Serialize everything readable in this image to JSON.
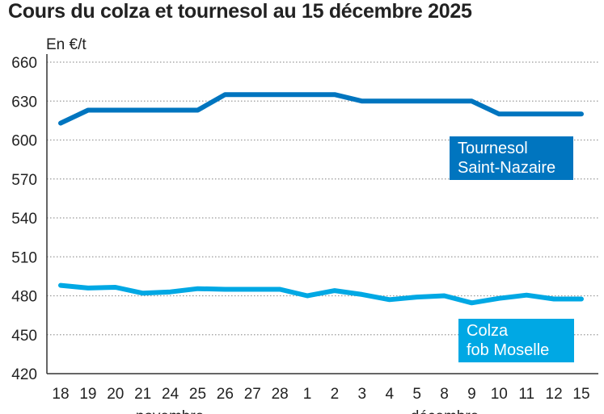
{
  "title": "Cours du colza et tournesol au 15 décembre 2025",
  "chart_data": {
    "type": "line",
    "title": "Cours du colza et tournesol au 15 décembre 2025",
    "ylabel": "En €/t",
    "ylim": [
      420,
      660
    ],
    "yticks": [
      420,
      450,
      480,
      510,
      540,
      570,
      600,
      630,
      660
    ],
    "grid": true,
    "categories": [
      "18",
      "19",
      "20",
      "21",
      "24",
      "25",
      "26",
      "27",
      "28",
      "1",
      "2",
      "3",
      "4",
      "5",
      "8",
      "9",
      "10",
      "11",
      "12",
      "15"
    ],
    "month_labels": [
      "novembre",
      "décembre"
    ],
    "series": [
      {
        "name": "Tournesol Saint-Nazaire",
        "color": "#0075bf",
        "values": [
          613,
          623,
          623,
          623,
          623,
          623,
          635,
          635,
          635,
          635,
          635,
          630,
          630,
          630,
          630,
          630,
          620,
          620,
          620,
          620
        ]
      },
      {
        "name": "Colza fob Moselle",
        "color": "#00a8e4",
        "values": [
          488,
          486,
          486.5,
          482,
          483,
          485.5,
          485,
          485,
          485,
          480,
          484,
          481,
          477,
          479,
          480,
          474.5,
          478,
          480.5,
          477.5,
          477.5
        ]
      }
    ]
  }
}
